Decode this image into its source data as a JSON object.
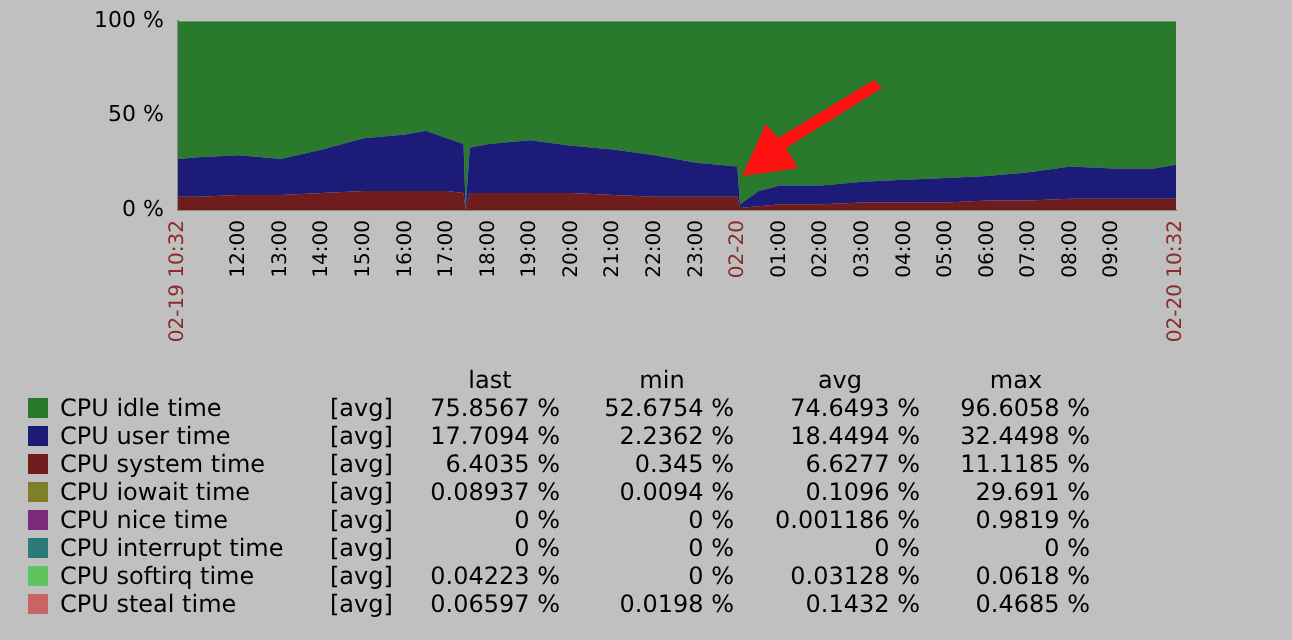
{
  "chart_data": {
    "type": "area",
    "stacked": true,
    "legend": "bottom",
    "grid": false,
    "x": [
      "--02-19T10:32",
      "--02-19T11:00",
      "--02-19T12:00",
      "--02-19T13:00",
      "--02-19T14:00",
      "--02-19T15:00",
      "--02-19T16:00",
      "--02-19T16:30",
      "--02-19T17:00",
      "--02-19T17:24",
      "--02-19T17:27",
      "--02-19T17:33",
      "--02-19T18:00",
      "--02-19T19:00",
      "--02-19T20:00",
      "--02-19T21:00",
      "--02-19T22:00",
      "--02-19T23:00",
      "--02-19T23:59",
      "--02-20T00:03",
      "--02-20T00:30",
      "--02-20T01:00",
      "--02-20T02:00",
      "--02-20T03:00",
      "--02-20T04:00",
      "--02-20T05:00",
      "--02-20T06:00",
      "--02-20T07:00",
      "--02-20T08:00",
      "--02-20T09:00",
      "--02-20T10:00",
      "--02-20T10:32"
    ],
    "xlim": [
      "--02-19T10:32",
      "--02-20T10:32"
    ],
    "xticks": [
      {
        "value": "--02-19T10:32",
        "label": "02-19 10:32"
      },
      {
        "value": "--02-19T12:00",
        "label": "12:00"
      },
      {
        "value": "--02-19T13:00",
        "label": "13:00"
      },
      {
        "value": "--02-19T14:00",
        "label": "14:00"
      },
      {
        "value": "--02-19T15:00",
        "label": "15:00"
      },
      {
        "value": "--02-19T16:00",
        "label": "16:00"
      },
      {
        "value": "--02-19T17:00",
        "label": "17:00"
      },
      {
        "value": "--02-19T18:00",
        "label": "18:00"
      },
      {
        "value": "--02-19T19:00",
        "label": "19:00"
      },
      {
        "value": "--02-19T20:00",
        "label": "20:00"
      },
      {
        "value": "--02-19T21:00",
        "label": "21:00"
      },
      {
        "value": "--02-19T22:00",
        "label": "22:00"
      },
      {
        "value": "--02-19T23:00",
        "label": "23:00"
      },
      {
        "value": "--02-20",
        "label": "02-20"
      },
      {
        "value": "--02-20T01:00",
        "label": "01:00"
      },
      {
        "value": "--02-20T02:00",
        "label": "02:00"
      },
      {
        "value": "--02-20T03:00",
        "label": "03:00"
      },
      {
        "value": "--02-20T04:00",
        "label": "04:00"
      },
      {
        "value": "--02-20T05:00",
        "label": "05:00"
      },
      {
        "value": "--02-20T06:00",
        "label": "06:00"
      },
      {
        "value": "--02-20T07:00",
        "label": "07:00"
      },
      {
        "value": "--02-20T08:00",
        "label": "08:00"
      },
      {
        "value": "--02-20T09:00",
        "label": "09:00"
      },
      {
        "value": "--02-20T10:32",
        "label": "02-20 10:32"
      }
    ],
    "ylim": [
      0,
      100
    ],
    "yticks": [
      {
        "value": 0,
        "label": "0 %"
      },
      {
        "value": 50,
        "label": "50 %"
      },
      {
        "value": 100,
        "label": "100 %"
      }
    ],
    "series": [
      {
        "name": "CPU steal time",
        "color": "#c86464",
        "values": [
          null,
          null,
          null,
          null,
          null,
          null,
          null,
          null,
          null,
          null,
          null,
          null,
          null,
          null,
          null,
          null,
          null,
          null,
          null,
          null,
          null,
          null,
          null,
          null,
          null,
          null,
          null,
          null,
          null,
          null,
          null,
          null
        ]
      },
      {
        "name": "CPU softirq time",
        "color": "#5fc35f",
        "values": [
          null,
          null,
          null,
          null,
          null,
          null,
          null,
          null,
          null,
          null,
          null,
          null,
          null,
          null,
          null,
          null,
          null,
          null,
          null,
          null,
          null,
          null,
          null,
          null,
          null,
          null,
          null,
          null,
          null,
          null,
          null,
          null
        ]
      },
      {
        "name": "CPU interrupt time",
        "color": "#2a7a7a",
        "values": [
          null,
          null,
          null,
          null,
          null,
          null,
          null,
          null,
          null,
          null,
          null,
          null,
          null,
          null,
          null,
          null,
          null,
          null,
          null,
          null,
          null,
          null,
          null,
          null,
          null,
          null,
          null,
          null,
          null,
          null,
          null,
          null
        ]
      },
      {
        "name": "CPU nice time",
        "color": "#7a2a7a",
        "values": [
          null,
          null,
          null,
          null,
          null,
          null,
          null,
          null,
          null,
          null,
          null,
          null,
          null,
          null,
          null,
          null,
          null,
          null,
          null,
          null,
          null,
          null,
          null,
          null,
          null,
          null,
          null,
          null,
          null,
          null,
          null,
          null
        ]
      },
      {
        "name": "CPU iowait time",
        "color": "#7f7f2a",
        "values": [
          null,
          null,
          null,
          null,
          null,
          null,
          null,
          null,
          null,
          null,
          null,
          null,
          null,
          null,
          null,
          null,
          null,
          null,
          null,
          null,
          null,
          null,
          null,
          null,
          null,
          null,
          null,
          null,
          null,
          null,
          null,
          null
        ]
      },
      {
        "name": "CPU system time",
        "color": "#6e1c1c",
        "values": [
          7,
          7,
          8,
          8,
          9,
          10,
          10,
          10,
          10,
          9,
          0,
          9,
          9,
          9,
          9,
          8,
          7,
          7,
          7,
          1,
          2,
          3,
          3,
          4,
          4,
          4,
          5,
          5,
          6,
          6,
          6,
          6
        ]
      },
      {
        "name": "CPU user time",
        "color": "#1c1c78",
        "values": [
          20,
          21,
          21,
          19,
          23,
          28,
          30,
          32,
          28,
          26,
          1,
          24,
          26,
          28,
          25,
          24,
          22,
          18,
          16,
          2,
          8,
          10,
          10,
          11,
          12,
          13,
          13,
          15,
          17,
          16,
          16,
          18
        ]
      },
      {
        "name": "CPU idle time",
        "color": "#2a7a2e",
        "values": [
          73,
          72,
          71,
          73,
          68,
          62,
          60,
          58,
          62,
          65,
          99,
          67,
          65,
          63,
          66,
          68,
          71,
          75,
          77,
          97,
          90,
          87,
          87,
          85,
          84,
          83,
          82,
          80,
          77,
          78,
          78,
          76
        ]
      }
    ],
    "annotations": [
      "last",
      "min",
      "avg",
      "max",
      "[avg]",
      "75.8567 %",
      "52.6754 %",
      "74.6493 %",
      "96.6058 %",
      "[avg]",
      "17.7094 %",
      "2.2362 %",
      "18.4494 %",
      "32.4498 %",
      "[avg]",
      "6.4035 %",
      "0.345 %",
      "6.6277 %",
      "11.1185 %",
      "[avg]",
      "0.08937 %",
      "0.0094 %",
      "0.1096 %",
      "29.691 %",
      "[avg]",
      "0 %",
      "0 %",
      "0.001186 %",
      "0.9819 %",
      "[avg]",
      "0 %",
      "0 %",
      "0 %",
      "0 %",
      "[avg]",
      "0.04223 %",
      "0 %",
      "0.03128 %",
      "0.0618 %",
      "[avg]",
      "0.06597 %",
      "0.0198 %",
      "0.1432 %",
      "0.4685 %"
    ]
  }
}
